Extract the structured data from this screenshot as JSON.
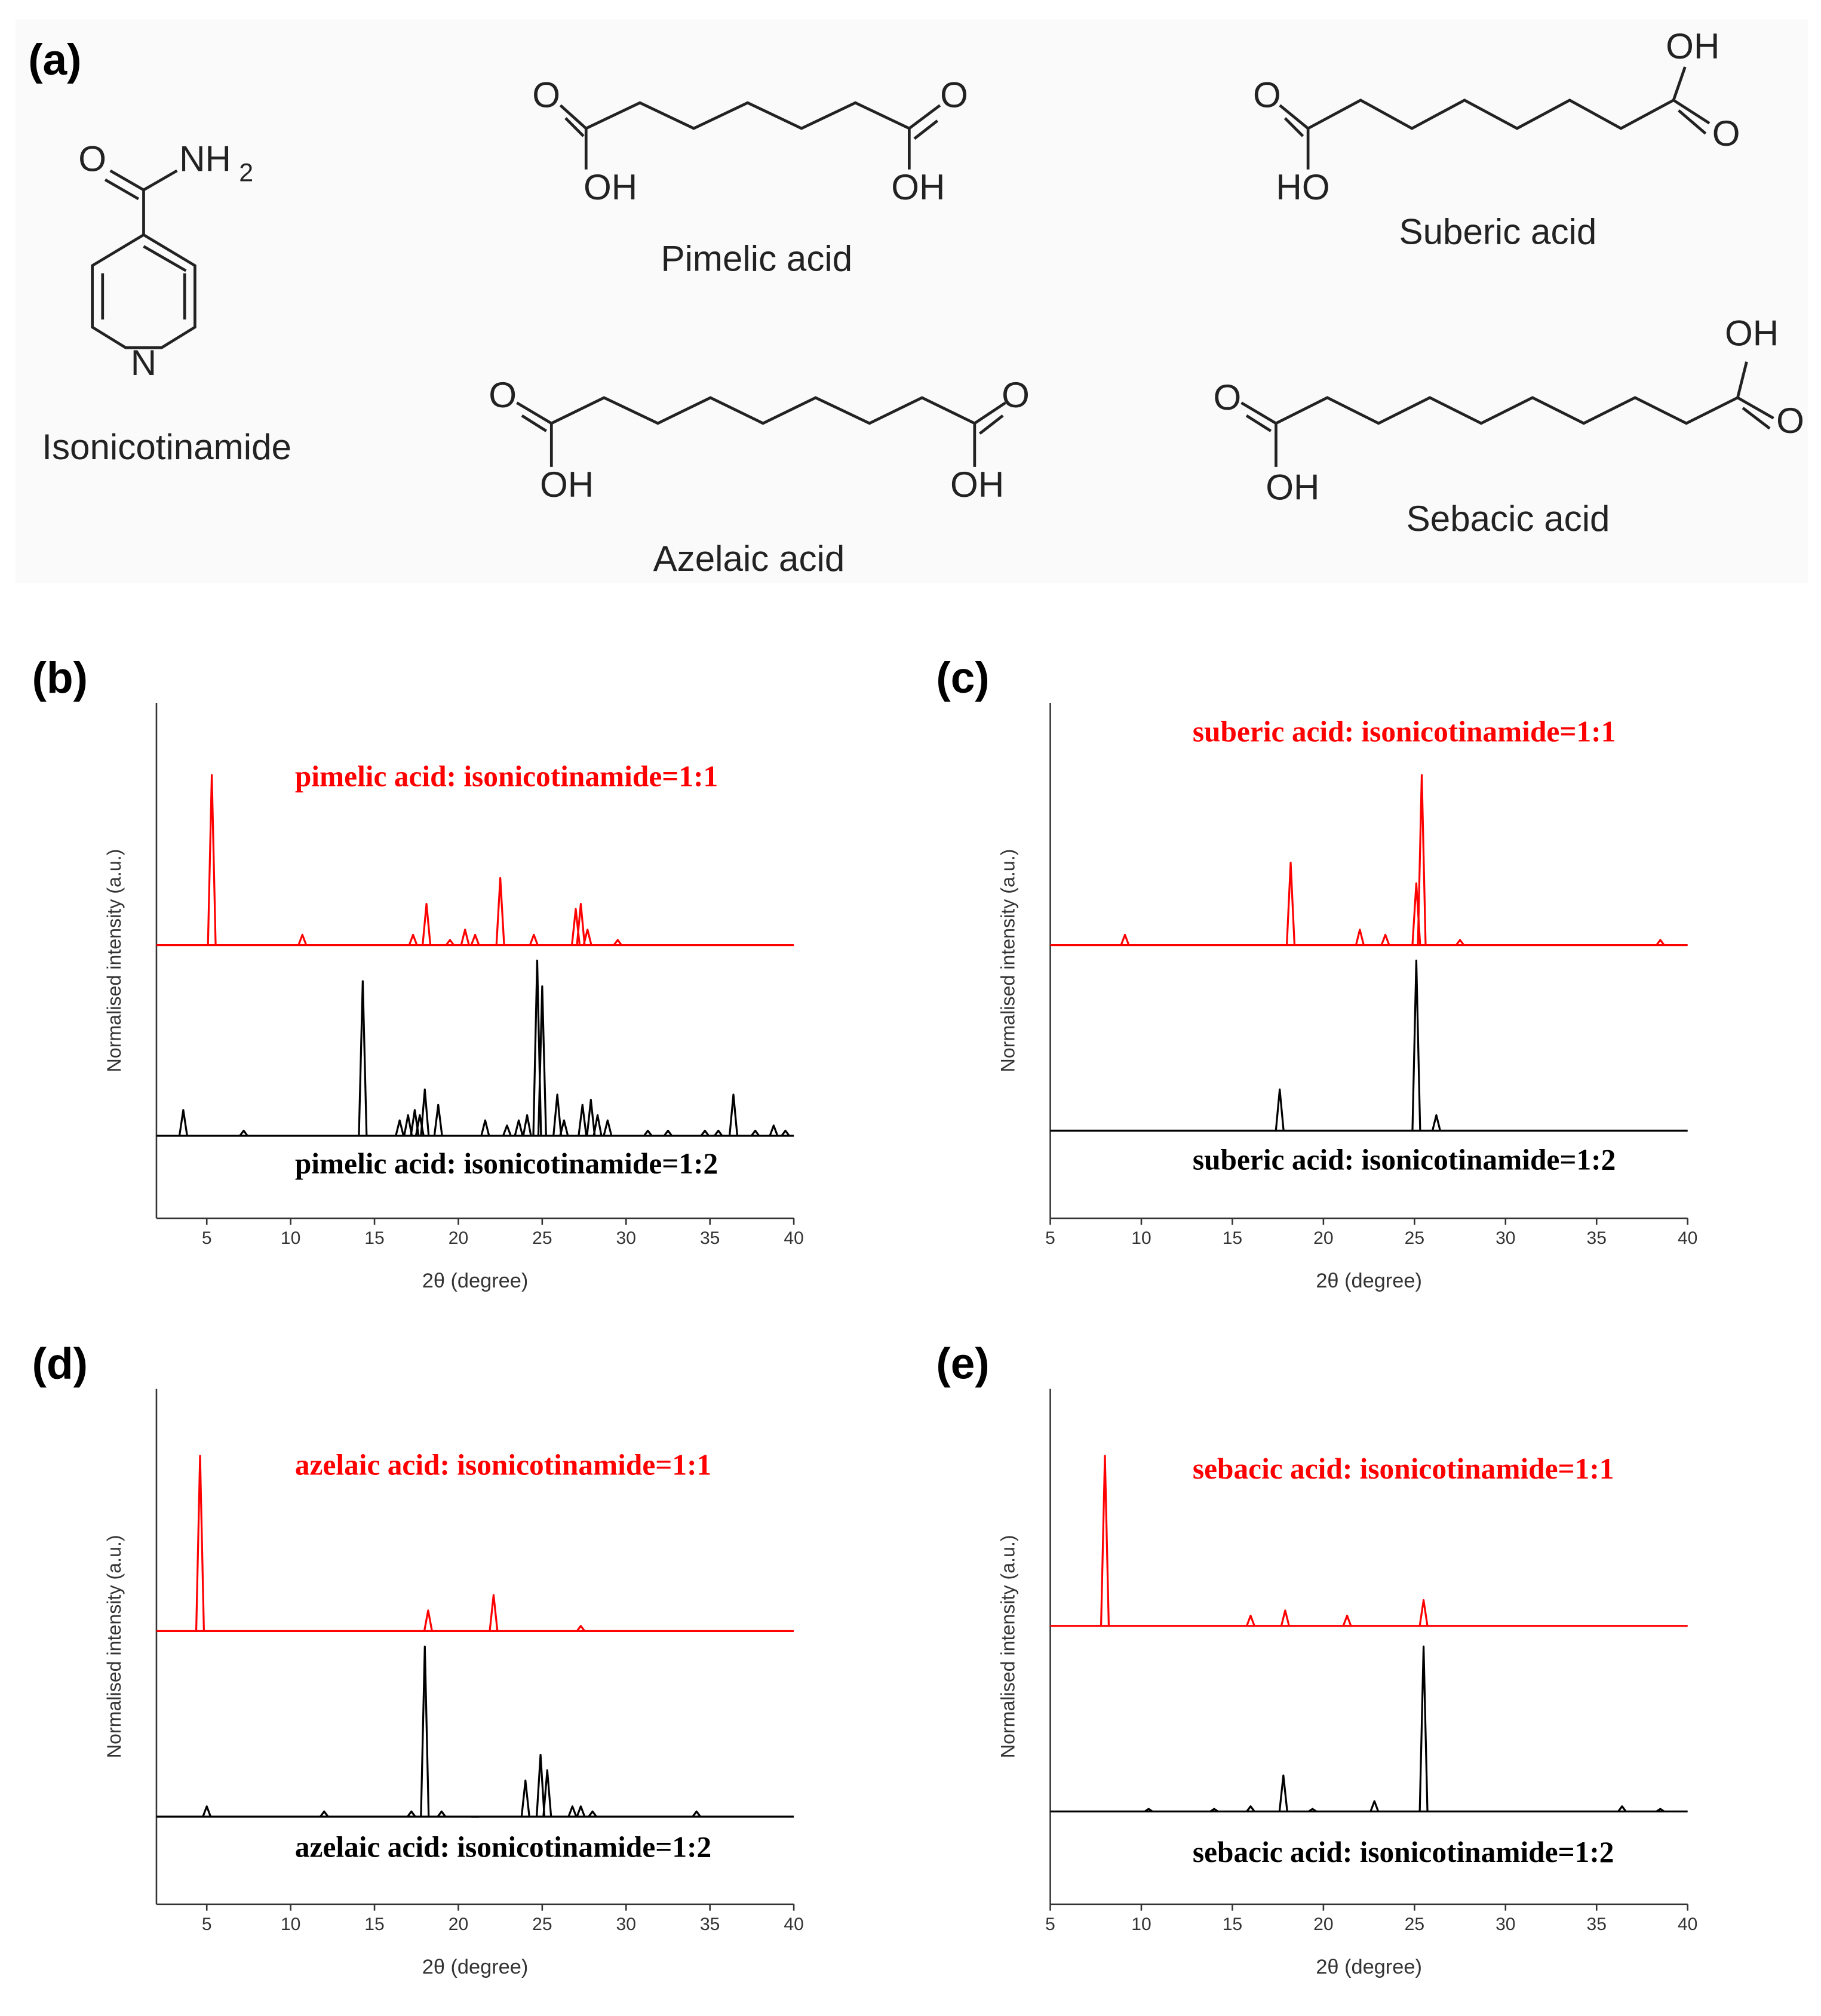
{
  "structures": {
    "panel_label": "(a)",
    "compounds": [
      {
        "name": "Isonicotinamide",
        "atoms": [
          "O",
          "NH",
          "2",
          "N"
        ]
      },
      {
        "name": "Pimelic acid",
        "atoms": [
          "O",
          "OH",
          "O",
          "OH"
        ]
      },
      {
        "name": "Suberic acid",
        "atoms": [
          "O",
          "HO",
          "OH",
          "O"
        ]
      },
      {
        "name": "Azelaic acid",
        "atoms": [
          "O",
          "OH",
          "O",
          "OH"
        ]
      },
      {
        "name": "Sebacic acid",
        "atoms": [
          "O",
          "OH",
          "OH",
          "O"
        ]
      }
    ]
  },
  "chart_data": [
    {
      "type": "xrd",
      "panel_label": "(b)",
      "xlabel": "2θ (degree)",
      "ylabel": "Normalised intensity (a.u.)",
      "xlim": [
        2,
        40
      ],
      "xticks": [
        5,
        10,
        15,
        20,
        25,
        30,
        35,
        40
      ],
      "ylim": [
        0,
        100
      ],
      "series": [
        {
          "name": "pimelic acid: isonicotinamide=1:1",
          "color": "#ff0000",
          "baseline": 53,
          "x": [
            5.3,
            10.7,
            17.3,
            18.1,
            19.5,
            20.4,
            21.0,
            22.5,
            24.5,
            27.0,
            27.3,
            27.7,
            29.5
          ],
          "values": [
            86,
            55,
            55,
            61,
            54,
            56,
            55,
            66,
            55,
            60,
            61,
            56,
            54
          ]
        },
        {
          "name": "pimelic acid: isonicotinamide=1:2",
          "color": "#000000",
          "baseline": 16,
          "x": [
            3.6,
            7.2,
            14.3,
            16.5,
            17.0,
            17.4,
            17.7,
            18.0,
            18.8,
            21.6,
            22.9,
            23.6,
            24.1,
            24.7,
            25.0,
            25.9,
            26.3,
            27.4,
            27.9,
            28.3,
            28.9,
            31.3,
            32.5,
            34.7,
            35.5,
            36.4,
            37.7,
            38.8,
            39.5
          ],
          "values": [
            21,
            17,
            46,
            19,
            20,
            21,
            20,
            25,
            22,
            19,
            18,
            19,
            20,
            50,
            45,
            24,
            19,
            22,
            23,
            20,
            19,
            17,
            17,
            17,
            17,
            24,
            17,
            18,
            17
          ]
        }
      ]
    },
    {
      "type": "xrd",
      "panel_label": "(c)",
      "xlabel": "2θ (degree)",
      "ylabel": "Normalised intensity (a.u.)",
      "xlim": [
        5,
        40
      ],
      "xticks": [
        5,
        10,
        15,
        20,
        25,
        30,
        35,
        40
      ],
      "ylim": [
        0,
        100
      ],
      "series": [
        {
          "name": "suberic acid: isonicotinamide=1:1",
          "color": "#ff0000",
          "baseline": 53,
          "x": [
            9.1,
            18.2,
            22.0,
            23.4,
            25.1,
            25.4,
            27.5,
            38.5
          ],
          "values": [
            55,
            69,
            56,
            55,
            65,
            86,
            54,
            54
          ]
        },
        {
          "name": "suberic acid: isonicotinamide=1:2",
          "color": "#000000",
          "baseline": 17,
          "x": [
            17.6,
            25.1,
            26.2
          ],
          "values": [
            25,
            50,
            20
          ]
        }
      ]
    },
    {
      "type": "xrd",
      "panel_label": "(d)",
      "xlabel": "2θ (degree)",
      "ylabel": "Normalised intensity (a.u.)",
      "xlim": [
        2,
        40
      ],
      "xticks": [
        5,
        10,
        15,
        20,
        25,
        30,
        35,
        40
      ],
      "ylim": [
        0,
        100
      ],
      "series": [
        {
          "name": "azelaic acid: isonicotinamide=1:1",
          "color": "#ff0000",
          "baseline": 53,
          "x": [
            4.6,
            18.2,
            22.1,
            27.3
          ],
          "values": [
            87,
            57,
            60,
            54
          ]
        },
        {
          "name": "azelaic acid: isonicotinamide=1:2",
          "color": "#000000",
          "baseline": 17,
          "x": [
            5.0,
            12.0,
            17.2,
            18.0,
            19.0,
            21.0,
            24.0,
            24.9,
            25.3,
            26.8,
            27.3,
            28.0,
            34.2
          ],
          "values": [
            19,
            18,
            18,
            50,
            18,
            17,
            24,
            29,
            26,
            19,
            19,
            18,
            18
          ]
        }
      ]
    },
    {
      "type": "xrd",
      "panel_label": "(e)",
      "xlabel": "2θ (degree)",
      "ylabel": "Normalised intensity (a.u.)",
      "xlim": [
        5,
        40
      ],
      "xticks": [
        5,
        10,
        15,
        20,
        25,
        30,
        35,
        40
      ],
      "ylim": [
        0,
        100
      ],
      "series": [
        {
          "name": "sebacic acid: isonicotinamide=1:1",
          "color": "#ff0000",
          "baseline": 54,
          "x": [
            8.0,
            16.0,
            17.9,
            21.3,
            25.5
          ],
          "values": [
            87,
            56,
            57,
            56,
            59
          ]
        },
        {
          "name": "sebacic acid: isonicotinamide=1:2",
          "color": "#000000",
          "baseline": 18,
          "x": [
            10.4,
            14.0,
            16.0,
            17.8,
            19.4,
            22.8,
            25.5,
            36.4,
            38.5
          ],
          "values": [
            18.5,
            18.5,
            19,
            25,
            18.5,
            20,
            50,
            19,
            18.5
          ]
        }
      ]
    }
  ]
}
